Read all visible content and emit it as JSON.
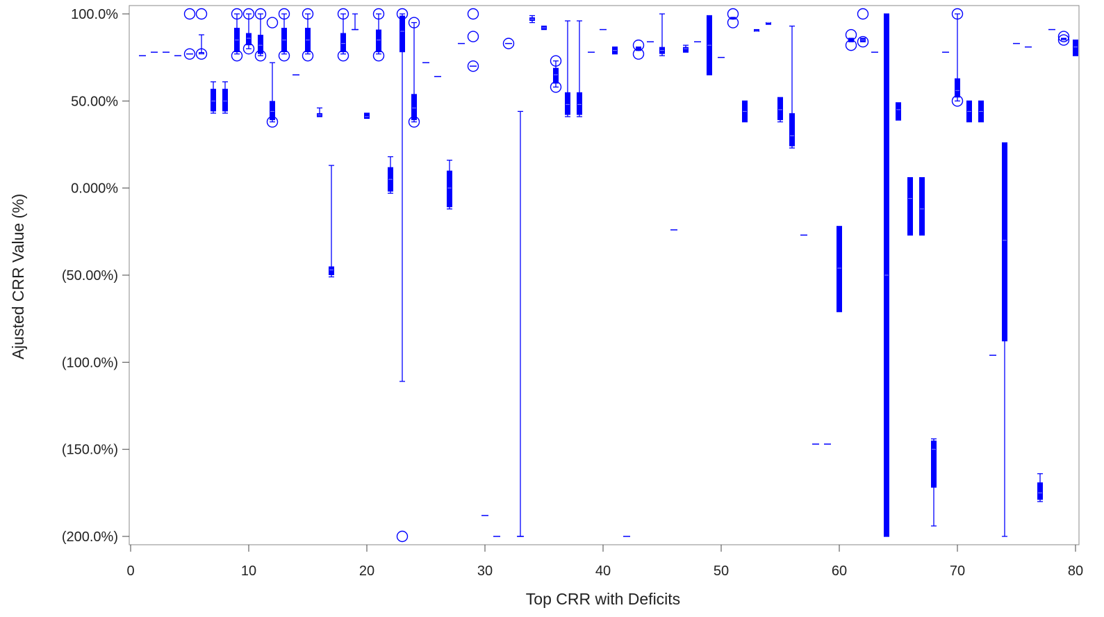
{
  "chart_data": {
    "type": "box",
    "title": "",
    "xlabel": "Top CRR with Deficits",
    "ylabel": "Ajusted CRR Value (%)",
    "xlim": [
      0,
      80
    ],
    "ylim": [
      -200,
      100
    ],
    "x_ticks": [
      0,
      10,
      20,
      30,
      40,
      50,
      60,
      70,
      80
    ],
    "x_tick_labels": [
      "0",
      "10",
      "20",
      "30",
      "40",
      "50",
      "60",
      "70",
      "80"
    ],
    "y_ticks": [
      100,
      50,
      0,
      -50,
      -100,
      -150,
      -200
    ],
    "y_tick_labels": [
      "100.0%",
      "50.00%",
      "0.000%",
      "(50.00%)",
      "(100.0%)",
      "(150.0%)",
      "(200.0%)"
    ],
    "grid": false,
    "color": "#0000ff",
    "boxes": [
      {
        "x": 1,
        "lw": 76,
        "q1": 76,
        "med": 76,
        "q3": 76,
        "uw": 76
      },
      {
        "x": 2,
        "lw": 78,
        "q1": 78,
        "med": 78,
        "q3": 78,
        "uw": 78
      },
      {
        "x": 3,
        "lw": 78,
        "q1": 78,
        "med": 78,
        "q3": 78,
        "uw": 78
      },
      {
        "x": 4,
        "lw": 76,
        "q1": 76,
        "med": 76,
        "q3": 76,
        "uw": 76
      },
      {
        "x": 5,
        "lw": 77,
        "q1": 77,
        "med": 77,
        "q3": 77,
        "uw": 77
      },
      {
        "x": 6,
        "lw": 77,
        "q1": 77,
        "med": 77,
        "q3": 78,
        "uw": 88
      },
      {
        "x": 7,
        "lw": 43,
        "q1": 44,
        "med": 50,
        "q3": 57,
        "uw": 61
      },
      {
        "x": 8,
        "lw": 43,
        "q1": 44,
        "med": 50,
        "q3": 57,
        "uw": 61
      },
      {
        "x": 9,
        "lw": 77,
        "q1": 78,
        "med": 85,
        "q3": 92,
        "uw": 100
      },
      {
        "x": 10,
        "lw": 80,
        "q1": 82,
        "med": 86,
        "q3": 89,
        "uw": 100
      },
      {
        "x": 11,
        "lw": 76,
        "q1": 77,
        "med": 82,
        "q3": 88,
        "uw": 100
      },
      {
        "x": 12,
        "lw": 38,
        "q1": 39,
        "med": 44,
        "q3": 50,
        "uw": 72
      },
      {
        "x": 13,
        "lw": 77,
        "q1": 78,
        "med": 85,
        "q3": 92,
        "uw": 100
      },
      {
        "x": 14,
        "lw": 65,
        "q1": 65,
        "med": 65,
        "q3": 65,
        "uw": 65
      },
      {
        "x": 15,
        "lw": 77,
        "q1": 78,
        "med": 85,
        "q3": 92,
        "uw": 100
      },
      {
        "x": 16,
        "lw": 41,
        "q1": 41,
        "med": 42,
        "q3": 43,
        "uw": 46
      },
      {
        "x": 17,
        "lw": -51,
        "q1": -50,
        "med": -47,
        "q3": -45,
        "uw": 13
      },
      {
        "x": 18,
        "lw": 77,
        "q1": 78,
        "med": 83,
        "q3": 89,
        "uw": 100
      },
      {
        "x": 19,
        "lw": 91,
        "q1": 91,
        "med": 91,
        "q3": 91,
        "uw": 100
      },
      {
        "x": 20,
        "lw": 40,
        "q1": 40,
        "med": 41,
        "q3": 43,
        "uw": 43
      },
      {
        "x": 21,
        "lw": 77,
        "q1": 78,
        "med": 85,
        "q3": 91,
        "uw": 100
      },
      {
        "x": 22,
        "lw": -3,
        "q1": -2,
        "med": 5,
        "q3": 12,
        "uw": 18
      },
      {
        "x": 23,
        "lw": -111,
        "q1": 78,
        "med": 90,
        "q3": 99,
        "uw": 100
      },
      {
        "x": 24,
        "lw": 38,
        "q1": 39,
        "med": 46,
        "q3": 54,
        "uw": 95
      },
      {
        "x": 25,
        "lw": 72,
        "q1": 72,
        "med": 72,
        "q3": 72,
        "uw": 72
      },
      {
        "x": 26,
        "lw": 64,
        "q1": 64,
        "med": 64,
        "q3": 64,
        "uw": 64
      },
      {
        "x": 27,
        "lw": -12,
        "q1": -11,
        "med": 0,
        "q3": 10,
        "uw": 16
      },
      {
        "x": 28,
        "lw": 83,
        "q1": 83,
        "med": 83,
        "q3": 83,
        "uw": 83
      },
      {
        "x": 29,
        "lw": 70,
        "q1": 70,
        "med": 70,
        "q3": 70,
        "uw": 70
      },
      {
        "x": 30,
        "lw": -188,
        "q1": -188,
        "med": -188,
        "q3": -188,
        "uw": -188
      },
      {
        "x": 31,
        "lw": -200,
        "q1": -200,
        "med": -200,
        "q3": -200,
        "uw": -200
      },
      {
        "x": 32,
        "lw": 83,
        "q1": 83,
        "med": 83,
        "q3": 83,
        "uw": 83
      },
      {
        "x": 33,
        "lw": -200,
        "q1": -200,
        "med": -200,
        "q3": -200,
        "uw": 44
      },
      {
        "x": 34,
        "lw": 95,
        "q1": 96,
        "med": 97,
        "q3": 98,
        "uw": 99
      },
      {
        "x": 35,
        "lw": 91,
        "q1": 91,
        "med": 92,
        "q3": 93,
        "uw": 93
      },
      {
        "x": 36,
        "lw": 58,
        "q1": 60,
        "med": 65,
        "q3": 69,
        "uw": 73
      },
      {
        "x": 37,
        "lw": 41,
        "q1": 42,
        "med": 48,
        "q3": 55,
        "uw": 96
      },
      {
        "x": 38,
        "lw": 41,
        "q1": 42,
        "med": 48,
        "q3": 55,
        "uw": 96
      },
      {
        "x": 39,
        "lw": 78,
        "q1": 78,
        "med": 78,
        "q3": 78,
        "uw": 78
      },
      {
        "x": 40,
        "lw": 91,
        "q1": 91,
        "med": 91,
        "q3": 91,
        "uw": 91
      },
      {
        "x": 41,
        "lw": 77,
        "q1": 77,
        "med": 79,
        "q3": 81,
        "uw": 81
      },
      {
        "x": 42,
        "lw": -200,
        "q1": -200,
        "med": -200,
        "q3": -200,
        "uw": -200
      },
      {
        "x": 43,
        "lw": 79,
        "q1": 79,
        "med": 80,
        "q3": 81,
        "uw": 81
      },
      {
        "x": 44,
        "lw": 84,
        "q1": 84,
        "med": 84,
        "q3": 84,
        "uw": 84
      },
      {
        "x": 45,
        "lw": 76,
        "q1": 77,
        "med": 79,
        "q3": 81,
        "uw": 100
      },
      {
        "x": 46,
        "lw": -24,
        "q1": -24,
        "med": -24,
        "q3": -24,
        "uw": -24
      },
      {
        "x": 47,
        "lw": 78,
        "q1": 78,
        "med": 80,
        "q3": 81,
        "uw": 82
      },
      {
        "x": 48,
        "lw": 84,
        "q1": 84,
        "med": 84,
        "q3": 84,
        "uw": 84
      },
      {
        "x": 49,
        "lw": 65,
        "q1": 65,
        "med": 82,
        "q3": 99,
        "uw": 99
      },
      {
        "x": 50,
        "lw": 75,
        "q1": 75,
        "med": 75,
        "q3": 75,
        "uw": 75
      },
      {
        "x": 51,
        "lw": 97,
        "q1": 97,
        "med": 97,
        "q3": 98,
        "uw": 98
      },
      {
        "x": 52,
        "lw": 38,
        "q1": 38,
        "med": 44,
        "q3": 50,
        "uw": 50
      },
      {
        "x": 53,
        "lw": 90,
        "q1": 90,
        "med": 90,
        "q3": 91,
        "uw": 91
      },
      {
        "x": 54,
        "lw": 94,
        "q1": 94,
        "med": 95,
        "q3": 95,
        "uw": 95
      },
      {
        "x": 55,
        "lw": 38,
        "q1": 39,
        "med": 45,
        "q3": 52,
        "uw": 52
      },
      {
        "x": 56,
        "lw": 23,
        "q1": 24,
        "med": 30,
        "q3": 43,
        "uw": 93
      },
      {
        "x": 57,
        "lw": -27,
        "q1": -27,
        "med": -27,
        "q3": -27,
        "uw": -27
      },
      {
        "x": 58,
        "lw": -147,
        "q1": -147,
        "med": -147,
        "q3": -147,
        "uw": -147
      },
      {
        "x": 59,
        "lw": -147,
        "q1": -147,
        "med": -147,
        "q3": -147,
        "uw": -147
      },
      {
        "x": 60,
        "lw": -71,
        "q1": -71,
        "med": -46,
        "q3": -22,
        "uw": -22
      },
      {
        "x": 61,
        "lw": 84,
        "q1": 84,
        "med": 85,
        "q3": 86,
        "uw": 86
      },
      {
        "x": 62,
        "lw": 84,
        "q1": 84,
        "med": 85,
        "q3": 86,
        "uw": 86
      },
      {
        "x": 63,
        "lw": 78,
        "q1": 78,
        "med": 78,
        "q3": 78,
        "uw": 78
      },
      {
        "x": 64,
        "lw": -200,
        "q1": -200,
        "med": -50,
        "q3": 100,
        "uw": 100
      },
      {
        "x": 65,
        "lw": 39,
        "q1": 39,
        "med": 45,
        "q3": 49,
        "uw": 49
      },
      {
        "x": 66,
        "lw": -27,
        "q1": -27,
        "med": -6,
        "q3": 6,
        "uw": 6
      },
      {
        "x": 67,
        "lw": -27,
        "q1": -27,
        "med": -12,
        "q3": 6,
        "uw": 6
      },
      {
        "x": 68,
        "lw": -194,
        "q1": -172,
        "med": -150,
        "q3": -145,
        "uw": -144
      },
      {
        "x": 69,
        "lw": 78,
        "q1": 78,
        "med": 78,
        "q3": 78,
        "uw": 78
      },
      {
        "x": 70,
        "lw": 50,
        "q1": 52,
        "med": 56,
        "q3": 63,
        "uw": 100
      },
      {
        "x": 71,
        "lw": 38,
        "q1": 38,
        "med": 44,
        "q3": 50,
        "uw": 50
      },
      {
        "x": 72,
        "lw": 38,
        "q1": 38,
        "med": 44,
        "q3": 50,
        "uw": 50
      },
      {
        "x": 73,
        "lw": -96,
        "q1": -96,
        "med": -96,
        "q3": -96,
        "uw": -96
      },
      {
        "x": 74,
        "lw": -200,
        "q1": -88,
        "med": -30,
        "q3": 26,
        "uw": 26
      },
      {
        "x": 75,
        "lw": 83,
        "q1": 83,
        "med": 83,
        "q3": 83,
        "uw": 83
      },
      {
        "x": 76,
        "lw": 81,
        "q1": 81,
        "med": 81,
        "q3": 81,
        "uw": 81
      },
      {
        "x": 77,
        "lw": -180,
        "q1": -179,
        "med": -175,
        "q3": -169,
        "uw": -164
      },
      {
        "x": 78,
        "lw": 91,
        "q1": 91,
        "med": 91,
        "q3": 91,
        "uw": 91
      },
      {
        "x": 79,
        "lw": 85,
        "q1": 85,
        "med": 85,
        "q3": 86,
        "uw": 86
      },
      {
        "x": 80,
        "lw": 76,
        "q1": 76,
        "med": 81,
        "q3": 85,
        "uw": 85
      }
    ],
    "outliers": [
      {
        "x": 5,
        "y": 100
      },
      {
        "x": 5,
        "y": 77
      },
      {
        "x": 6,
        "y": 100
      },
      {
        "x": 6,
        "y": 77
      },
      {
        "x": 9,
        "y": 100
      },
      {
        "x": 9,
        "y": 76
      },
      {
        "x": 10,
        "y": 100
      },
      {
        "x": 10,
        "y": 80
      },
      {
        "x": 11,
        "y": 100
      },
      {
        "x": 11,
        "y": 76
      },
      {
        "x": 12,
        "y": 95
      },
      {
        "x": 12,
        "y": 38
      },
      {
        "x": 13,
        "y": 100
      },
      {
        "x": 13,
        "y": 76
      },
      {
        "x": 15,
        "y": 100
      },
      {
        "x": 15,
        "y": 76
      },
      {
        "x": 18,
        "y": 100
      },
      {
        "x": 18,
        "y": 76
      },
      {
        "x": 21,
        "y": 100
      },
      {
        "x": 21,
        "y": 76
      },
      {
        "x": 23,
        "y": 100
      },
      {
        "x": 23,
        "y": -200
      },
      {
        "x": 24,
        "y": 95
      },
      {
        "x": 24,
        "y": 38
      },
      {
        "x": 29,
        "y": 100
      },
      {
        "x": 29,
        "y": 87
      },
      {
        "x": 29,
        "y": 70
      },
      {
        "x": 32,
        "y": 83
      },
      {
        "x": 36,
        "y": 73
      },
      {
        "x": 36,
        "y": 58
      },
      {
        "x": 43,
        "y": 82
      },
      {
        "x": 43,
        "y": 77
      },
      {
        "x": 51,
        "y": 100
      },
      {
        "x": 51,
        "y": 95
      },
      {
        "x": 61,
        "y": 88
      },
      {
        "x": 61,
        "y": 82
      },
      {
        "x": 62,
        "y": 100
      },
      {
        "x": 62,
        "y": 84
      },
      {
        "x": 70,
        "y": 100
      },
      {
        "x": 70,
        "y": 50
      },
      {
        "x": 79,
        "y": 87
      },
      {
        "x": 79,
        "y": 85
      }
    ]
  }
}
